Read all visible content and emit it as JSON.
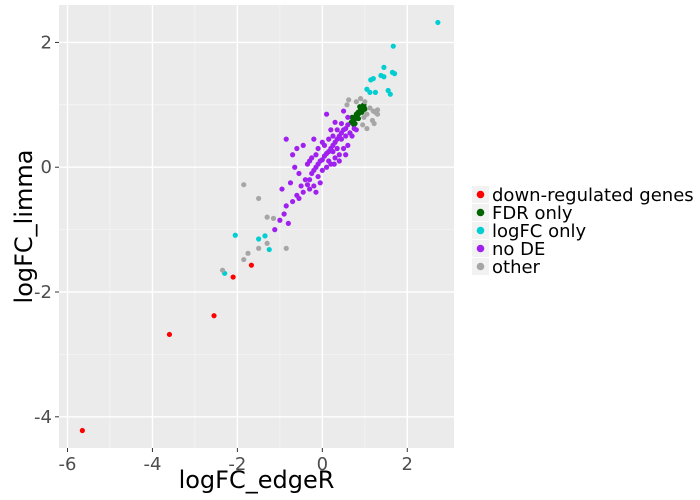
{
  "chart_data": {
    "type": "scatter",
    "xlabel": "logFC_edgeR",
    "ylabel": "logFC_limma",
    "xlim": [
      -6.2,
      3.1
    ],
    "ylim": [
      -4.5,
      2.6
    ],
    "x_ticks": [
      -6,
      -4,
      -2,
      0,
      2
    ],
    "y_ticks": [
      -4,
      -2,
      0,
      2
    ],
    "grid": true,
    "legend_position": "right",
    "colors": {
      "down-regulated genes": "#ff0000",
      "FDR only": "#006400",
      "logFC only": "#00ced1",
      "no DE": "#a020f0",
      "other": "#a6a6a6"
    },
    "series": [
      {
        "name": "down-regulated genes",
        "points": [
          [
            -5.65,
            -4.22
          ],
          [
            -3.6,
            -2.68
          ],
          [
            -2.55,
            -2.38
          ],
          [
            -2.1,
            -1.76
          ],
          [
            -1.67,
            -1.57
          ]
        ]
      },
      {
        "name": "FDR only",
        "points": [
          [
            0.68,
            0.72
          ],
          [
            0.72,
            0.75
          ],
          [
            0.75,
            0.8
          ],
          [
            0.78,
            0.78
          ],
          [
            0.8,
            0.85
          ],
          [
            0.82,
            0.82
          ],
          [
            0.84,
            0.88
          ],
          [
            0.86,
            0.86
          ],
          [
            0.88,
            0.9
          ],
          [
            0.9,
            0.93
          ],
          [
            0.92,
            0.95
          ],
          [
            0.94,
            0.97
          ],
          [
            0.96,
            0.99
          ],
          [
            0.98,
            1.0
          ],
          [
            0.99,
            0.95
          ],
          [
            1.0,
            0.93
          ],
          [
            0.77,
            0.7
          ],
          [
            0.85,
            0.78
          ],
          [
            0.93,
            0.88
          ],
          [
            0.7,
            0.8
          ],
          [
            0.74,
            0.68
          ],
          [
            0.88,
            0.97
          ],
          [
            0.95,
            0.91
          ]
        ]
      },
      {
        "name": "logFC only",
        "points": [
          [
            2.72,
            2.32
          ],
          [
            1.67,
            1.94
          ],
          [
            1.45,
            1.6
          ],
          [
            1.65,
            1.52
          ],
          [
            1.7,
            1.5
          ],
          [
            1.45,
            1.45
          ],
          [
            1.38,
            1.47
          ],
          [
            1.14,
            1.4
          ],
          [
            1.2,
            1.42
          ],
          [
            1.55,
            1.23
          ],
          [
            1.25,
            1.2
          ],
          [
            1.6,
            1.17
          ],
          [
            1.12,
            1.2
          ],
          [
            1.05,
            1.25
          ],
          [
            -2.05,
            -1.09
          ],
          [
            -1.35,
            -1.1
          ],
          [
            -1.5,
            -1.15
          ],
          [
            -1.25,
            -1.32
          ],
          [
            -2.3,
            -1.7
          ]
        ]
      },
      {
        "name": "no DE",
        "points": [
          [
            -1.12,
            -1.0
          ],
          [
            -0.9,
            -0.75
          ],
          [
            -0.85,
            -0.62
          ],
          [
            -0.7,
            -0.55
          ],
          [
            -0.6,
            -0.45
          ],
          [
            -0.55,
            -0.5
          ],
          [
            -0.45,
            -0.4
          ],
          [
            -0.35,
            -0.28
          ],
          [
            -0.3,
            -0.2
          ],
          [
            -0.25,
            -0.1
          ],
          [
            -0.2,
            -0.05
          ],
          [
            -0.15,
            0.0
          ],
          [
            -0.1,
            0.05
          ],
          [
            -0.05,
            0.1
          ],
          [
            0.0,
            0.12
          ],
          [
            0.05,
            0.18
          ],
          [
            0.1,
            0.22
          ],
          [
            0.15,
            0.25
          ],
          [
            0.2,
            0.3
          ],
          [
            0.25,
            0.35
          ],
          [
            0.3,
            0.4
          ],
          [
            0.35,
            0.45
          ],
          [
            0.4,
            0.5
          ],
          [
            0.45,
            0.55
          ],
          [
            0.5,
            0.6
          ],
          [
            0.55,
            0.62
          ],
          [
            0.6,
            0.68
          ],
          [
            -0.4,
            -0.2
          ],
          [
            -0.3,
            -0.35
          ],
          [
            -0.2,
            -0.3
          ],
          [
            -0.1,
            -0.15
          ],
          [
            0.0,
            -0.05
          ],
          [
            0.1,
            0.0
          ],
          [
            0.2,
            0.05
          ],
          [
            0.3,
            0.15
          ],
          [
            0.4,
            0.2
          ],
          [
            0.5,
            0.3
          ],
          [
            0.6,
            0.35
          ],
          [
            -0.5,
            -0.3
          ],
          [
            -0.35,
            0.05
          ],
          [
            -0.25,
            0.15
          ],
          [
            -0.15,
            0.2
          ],
          [
            0.05,
            0.35
          ],
          [
            0.15,
            0.45
          ],
          [
            0.25,
            0.5
          ],
          [
            0.35,
            0.6
          ],
          [
            0.45,
            0.7
          ],
          [
            -0.85,
            0.45
          ],
          [
            -0.6,
            0.3
          ],
          [
            -0.7,
            0.2
          ],
          [
            -0.55,
            -0.1
          ],
          [
            -0.65,
            0.0
          ],
          [
            0.1,
            0.85
          ],
          [
            0.3,
            0.72
          ],
          [
            0.5,
            0.9
          ],
          [
            0.4,
            0.1
          ],
          [
            0.55,
            0.2
          ],
          [
            0.7,
            0.5
          ],
          [
            0.6,
            0.8
          ],
          [
            0.2,
            0.6
          ],
          [
            0.0,
            0.4
          ],
          [
            -0.1,
            0.3
          ],
          [
            -0.2,
            0.45
          ],
          [
            -0.45,
            0.35
          ],
          [
            -0.8,
            -0.9
          ],
          [
            -1.0,
            -0.85
          ],
          [
            -0.95,
            -0.35
          ],
          [
            -0.75,
            -0.25
          ],
          [
            0.75,
            0.62
          ],
          [
            0.8,
            0.6
          ],
          [
            0.65,
            0.55
          ],
          [
            0.35,
            0.3
          ],
          [
            0.15,
            0.1
          ],
          [
            -0.05,
            -0.25
          ],
          [
            -0.15,
            -0.4
          ],
          [
            0.28,
            0.05
          ],
          [
            0.45,
            0.45
          ],
          [
            0.55,
            0.5
          ],
          [
            0.25,
            0.25
          ],
          [
            -0.3,
            0.1
          ]
        ]
      },
      {
        "name": "other",
        "points": [
          [
            -2.35,
            -1.65
          ],
          [
            -1.85,
            -1.48
          ],
          [
            -1.75,
            -1.38
          ],
          [
            -1.5,
            -1.3
          ],
          [
            -1.3,
            -1.22
          ],
          [
            -1.15,
            -0.82
          ],
          [
            -1.3,
            -0.8
          ],
          [
            -1.5,
            -0.5
          ],
          [
            -1.85,
            -0.28
          ],
          [
            -0.85,
            -1.3
          ],
          [
            0.58,
            1.0
          ],
          [
            0.62,
            1.08
          ],
          [
            0.8,
            1.05
          ],
          [
            0.9,
            1.1
          ],
          [
            1.0,
            1.05
          ],
          [
            0.98,
            0.8
          ],
          [
            1.05,
            0.85
          ],
          [
            1.12,
            0.95
          ],
          [
            1.2,
            0.9
          ],
          [
            1.25,
            0.88
          ],
          [
            1.3,
            0.85
          ],
          [
            1.18,
            0.75
          ],
          [
            1.22,
            0.7
          ],
          [
            0.95,
            0.68
          ],
          [
            1.05,
            0.62
          ],
          [
            1.3,
            0.92
          ]
        ]
      }
    ]
  }
}
